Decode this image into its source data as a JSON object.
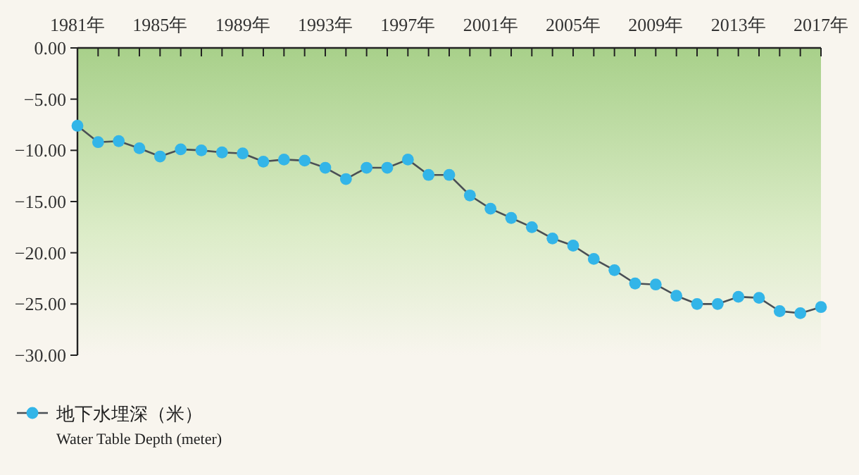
{
  "chart_data": {
    "type": "line",
    "x": [
      1981,
      1982,
      1983,
      1984,
      1985,
      1986,
      1987,
      1988,
      1989,
      1990,
      1991,
      1992,
      1993,
      1994,
      1995,
      1996,
      1997,
      1998,
      1999,
      2000,
      2001,
      2002,
      2003,
      2004,
      2005,
      2006,
      2007,
      2008,
      2009,
      2010,
      2011,
      2012,
      2013,
      2014,
      2015,
      2016,
      2017
    ],
    "series": [
      {
        "name": "地下水埋深（米）",
        "color": "#33b5e8",
        "values": [
          -7.6,
          -9.2,
          -9.1,
          -9.8,
          -10.6,
          -9.9,
          -10.0,
          -10.2,
          -10.3,
          -11.1,
          -10.9,
          -11.0,
          -11.7,
          -12.8,
          -11.7,
          -11.7,
          -10.9,
          -12.4,
          -12.4,
          -14.4,
          -15.7,
          -16.6,
          -17.5,
          -18.6,
          -19.3,
          -20.6,
          -21.7,
          -23.0,
          -23.1,
          -24.2,
          -25.0,
          -25.0,
          -24.3,
          -24.4,
          -25.7,
          -25.9,
          -25.3
        ]
      }
    ],
    "xlim": [
      1981,
      2017
    ],
    "xticks": [
      {
        "value": 1981,
        "label": "1981年"
      },
      {
        "value": 1982,
        "label": null
      },
      {
        "value": 1983,
        "label": null
      },
      {
        "value": 1984,
        "label": null
      },
      {
        "value": 1985,
        "label": "1985年"
      },
      {
        "value": 1986,
        "label": null
      },
      {
        "value": 1987,
        "label": null
      },
      {
        "value": 1988,
        "label": null
      },
      {
        "value": 1989,
        "label": "1989年"
      },
      {
        "value": 1990,
        "label": null
      },
      {
        "value": 1991,
        "label": null
      },
      {
        "value": 1992,
        "label": null
      },
      {
        "value": 1993,
        "label": "1993年"
      },
      {
        "value": 1994,
        "label": null
      },
      {
        "value": 1995,
        "label": null
      },
      {
        "value": 1996,
        "label": null
      },
      {
        "value": 1997,
        "label": "1997年"
      },
      {
        "value": 1998,
        "label": null
      },
      {
        "value": 1999,
        "label": null
      },
      {
        "value": 2000,
        "label": null
      },
      {
        "value": 2001,
        "label": "2001年"
      },
      {
        "value": 2002,
        "label": null
      },
      {
        "value": 2003,
        "label": null
      },
      {
        "value": 2004,
        "label": null
      },
      {
        "value": 2005,
        "label": "2005年"
      },
      {
        "value": 2006,
        "label": null
      },
      {
        "value": 2007,
        "label": null
      },
      {
        "value": 2008,
        "label": null
      },
      {
        "value": 2009,
        "label": "2009年"
      },
      {
        "value": 2010,
        "label": null
      },
      {
        "value": 2011,
        "label": null
      },
      {
        "value": 2012,
        "label": null
      },
      {
        "value": 2013,
        "label": "2013年"
      },
      {
        "value": 2014,
        "label": null
      },
      {
        "value": 2015,
        "label": null
      },
      {
        "value": 2016,
        "label": null
      },
      {
        "value": 2017,
        "label": "2017年"
      }
    ],
    "ylim": [
      -30,
      0
    ],
    "yticks": [
      {
        "value": 0,
        "label": "0.00"
      },
      {
        "value": -5,
        "label": "−5.00"
      },
      {
        "value": -10,
        "label": "−10.00"
      },
      {
        "value": -15,
        "label": "−15.00"
      },
      {
        "value": -20,
        "label": "−20.00"
      },
      {
        "value": -25,
        "label": "−25.00"
      },
      {
        "value": -30,
        "label": "−30.00"
      }
    ],
    "marker": "circle",
    "line_style": "solid",
    "legend": "bottom left",
    "grid": false,
    "annotations": [
      "Water Table Depth (meter)"
    ]
  }
}
